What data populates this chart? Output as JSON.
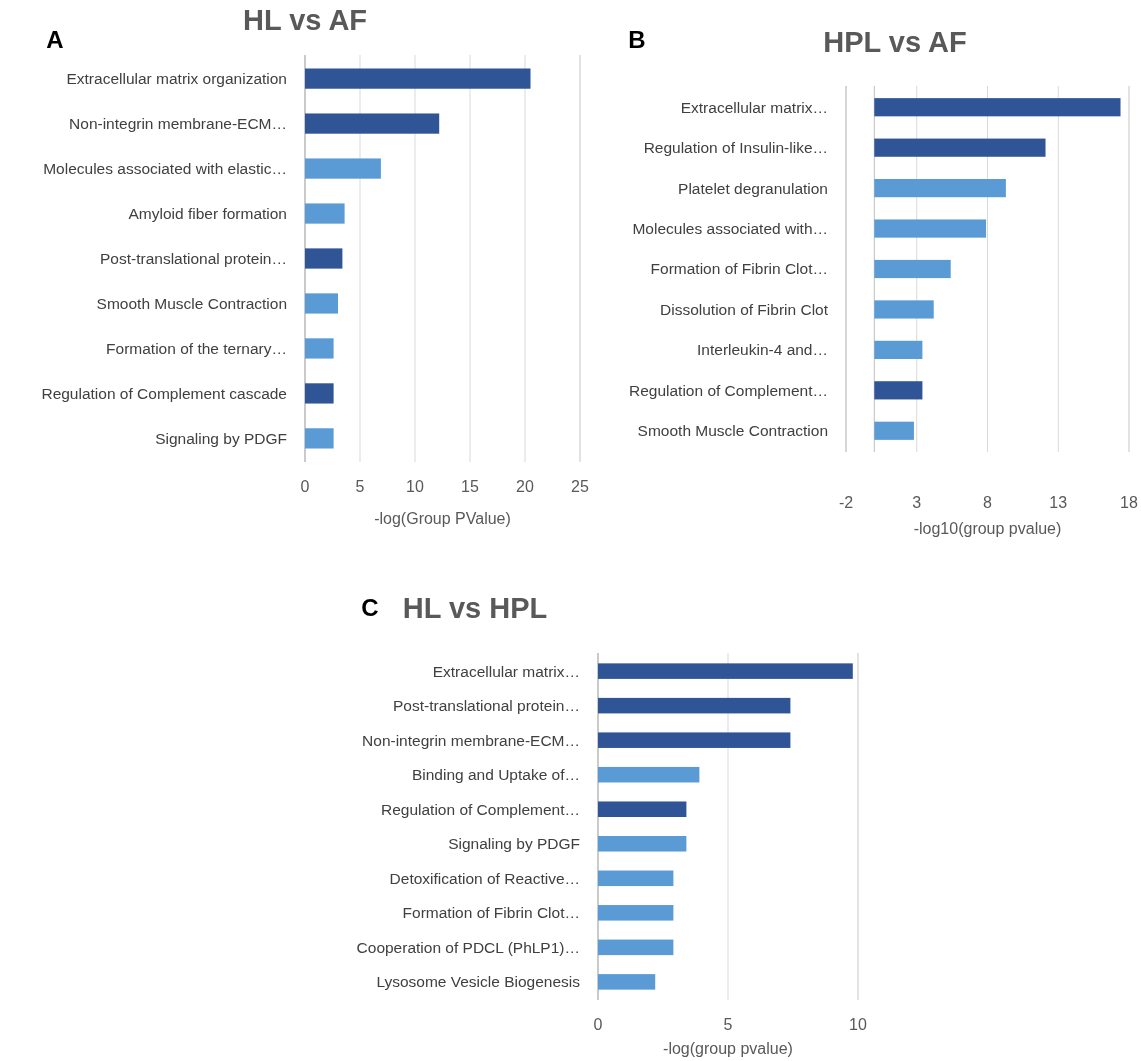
{
  "chart_data": [
    {
      "type": "bar",
      "orientation": "horizontal",
      "title": "HL vs AF",
      "xlabel": "-log(Group PValue)",
      "annotations": [
        "A"
      ],
      "categories": [
        "Extracellular matrix organization",
        "Non-integrin membrane-ECM…",
        "Molecules associated with elastic…",
        "Amyloid fiber formation",
        "Post-translational protein…",
        "Smooth Muscle Contraction",
        "Formation of the ternary…",
        "Regulation of Complement cascade",
        "Signaling by PDGF"
      ],
      "values": [
        20.5,
        12.2,
        6.9,
        3.6,
        3.4,
        3.0,
        2.6,
        2.6,
        2.6
      ],
      "colors": [
        "#2f5597",
        "#2f5597",
        "#5b9bd5",
        "#5b9bd5",
        "#2f5597",
        "#5b9bd5",
        "#5b9bd5",
        "#2f5597",
        "#5b9bd5"
      ],
      "xlim": [
        0,
        25
      ],
      "xticks": [
        0,
        5,
        10,
        15,
        20,
        25
      ],
      "grid": "x"
    },
    {
      "type": "bar",
      "orientation": "horizontal",
      "title": "HPL vs AF",
      "xlabel": "-log10(group pvalue)",
      "annotations": [
        "B"
      ],
      "categories": [
        "Extracellular matrix…",
        "Regulation of Insulin-like…",
        "Platelet degranulation",
        "Molecules associated with…",
        "Formation of Fibrin Clot…",
        "Dissolution of Fibrin Clot",
        "Interleukin-4 and…",
        "Regulation of Complement…",
        "Smooth Muscle Contraction"
      ],
      "values": [
        17.4,
        12.1,
        9.3,
        7.9,
        5.4,
        4.2,
        3.4,
        3.4,
        2.8
      ],
      "colors": [
        "#2f5597",
        "#2f5597",
        "#5b9bd5",
        "#5b9bd5",
        "#5b9bd5",
        "#5b9bd5",
        "#5b9bd5",
        "#2f5597",
        "#5b9bd5"
      ],
      "xlim": [
        -2,
        18
      ],
      "xticks": [
        -2,
        3,
        8,
        13,
        18
      ],
      "grid": "x"
    },
    {
      "type": "bar",
      "orientation": "horizontal",
      "title": "HL vs HPL",
      "xlabel": "-log(group pvalue)",
      "annotations": [
        "C"
      ],
      "categories": [
        "Extracellular matrix…",
        "Post-translational protein…",
        "Non-integrin membrane-ECM…",
        "Binding and Uptake of…",
        "Regulation of Complement…",
        "Signaling by PDGF",
        "Detoxification of Reactive…",
        "Formation of Fibrin Clot…",
        "Cooperation of PDCL (PhLP1)…",
        "Lysosome Vesicle Biogenesis"
      ],
      "values": [
        9.8,
        7.4,
        7.4,
        3.9,
        3.4,
        3.4,
        2.9,
        2.9,
        2.9,
        2.2
      ],
      "colors": [
        "#2f5597",
        "#2f5597",
        "#2f5597",
        "#5b9bd5",
        "#2f5597",
        "#5b9bd5",
        "#5b9bd5",
        "#5b9bd5",
        "#5b9bd5",
        "#5b9bd5"
      ],
      "xlim": [
        0,
        10
      ],
      "xticks": [
        0,
        5,
        10
      ],
      "grid": "x"
    }
  ]
}
